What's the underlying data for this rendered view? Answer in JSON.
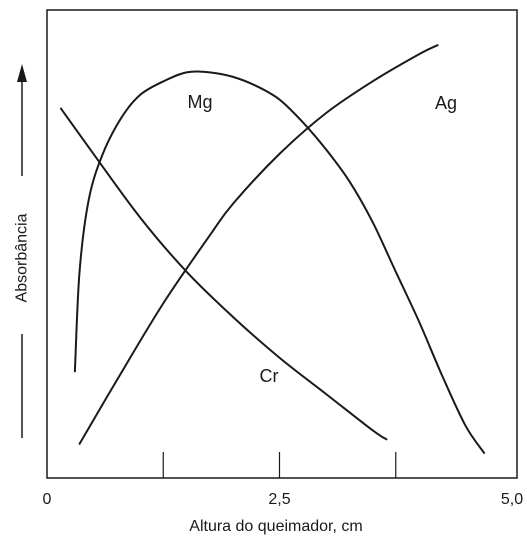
{
  "chart_data": {
    "type": "line",
    "xlabel": "Altura do queimador, cm",
    "ylabel": "Absorbância",
    "xlim": [
      0,
      5.0
    ],
    "ylim": [
      0,
      1
    ],
    "y_ticks_shown": false,
    "grid": false,
    "x_tick_labels": [
      {
        "value": 0,
        "label": "0"
      },
      {
        "value": 2.5,
        "label": "2,5"
      },
      {
        "value": 5.0,
        "label": "5,0"
      }
    ],
    "x_minor_ticks": [
      1.25,
      3.75
    ],
    "series": [
      {
        "name": "Mg",
        "x": [
          0.3,
          0.35,
          0.45,
          0.6,
          0.8,
          1.0,
          1.25,
          1.5,
          1.75,
          2.0,
          2.25,
          2.5,
          2.75,
          3.0,
          3.25,
          3.5,
          3.75,
          4.0,
          4.25,
          4.5,
          4.7
        ],
        "y": [
          0.22,
          0.44,
          0.6,
          0.7,
          0.78,
          0.83,
          0.86,
          0.88,
          0.88,
          0.87,
          0.85,
          0.82,
          0.77,
          0.71,
          0.64,
          0.55,
          0.44,
          0.33,
          0.21,
          0.1,
          0.04
        ]
      },
      {
        "name": "Ag",
        "x": [
          0.35,
          0.75,
          1.25,
          1.75,
          2.0,
          2.5,
          3.0,
          3.5,
          4.0,
          4.2
        ],
        "y": [
          0.06,
          0.2,
          0.37,
          0.52,
          0.59,
          0.7,
          0.79,
          0.86,
          0.92,
          0.94
        ]
      },
      {
        "name": "Cr",
        "x": [
          0.15,
          0.5,
          1.0,
          1.5,
          2.0,
          2.5,
          3.0,
          3.5,
          3.65
        ],
        "y": [
          0.8,
          0.7,
          0.56,
          0.44,
          0.34,
          0.25,
          0.17,
          0.09,
          0.07
        ]
      }
    ]
  }
}
